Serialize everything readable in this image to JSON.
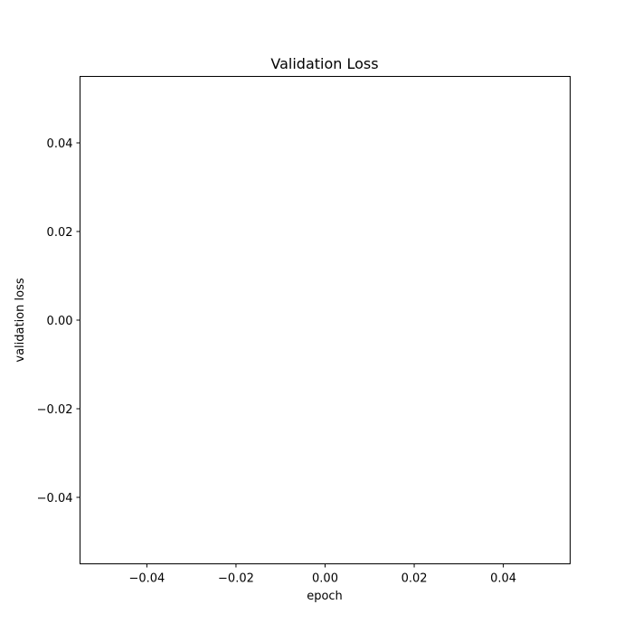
{
  "chart_data": {
    "type": "line",
    "title": "Validation Loss",
    "xlabel": "epoch",
    "ylabel": "validation loss",
    "xlim": [
      -0.055,
      0.055
    ],
    "ylim": [
      -0.055,
      0.055
    ],
    "x_ticks": [
      -0.04,
      -0.02,
      0.0,
      0.02,
      0.04
    ],
    "y_ticks": [
      -0.04,
      -0.02,
      0.0,
      0.02,
      0.04
    ],
    "x_tick_labels": [
      "−0.04",
      "−0.02",
      "0.00",
      "0.02",
      "0.04"
    ],
    "y_tick_labels": [
      "−0.04",
      "−0.02",
      "0.00",
      "0.02",
      "0.04"
    ],
    "series": [],
    "grid": false,
    "legend": false
  }
}
